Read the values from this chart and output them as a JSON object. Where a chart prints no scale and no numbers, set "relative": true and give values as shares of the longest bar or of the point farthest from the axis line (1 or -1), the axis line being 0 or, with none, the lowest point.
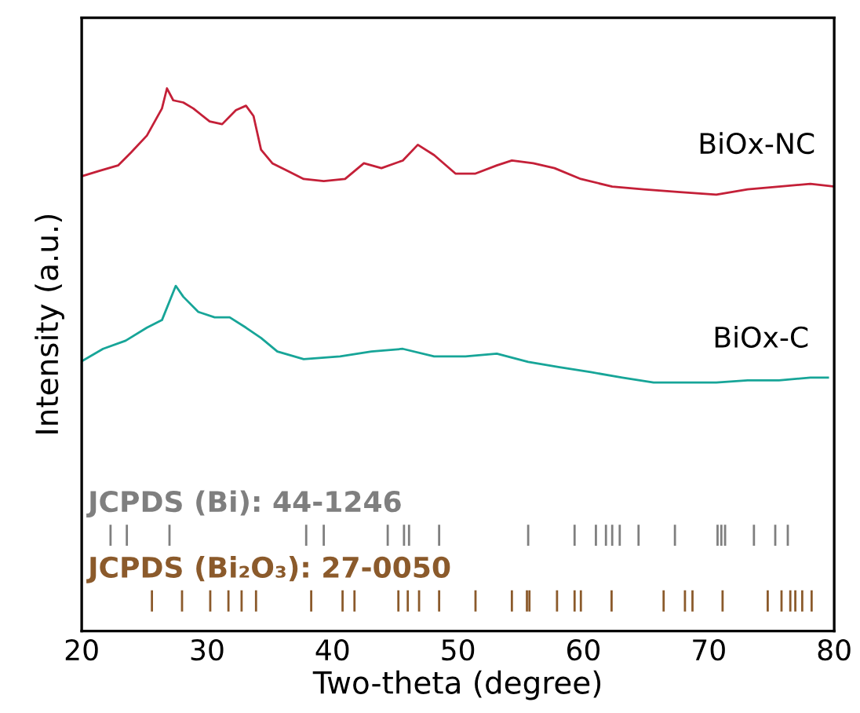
{
  "chart_data": {
    "type": "line",
    "relative": true,
    "xlabel": "Two-theta (degree)",
    "ylabel": "Intensity (a.u.)",
    "xlim": [
      20,
      80
    ],
    "xticks": [
      20,
      30,
      40,
      50,
      60,
      70,
      80
    ],
    "grid": false,
    "legend": false,
    "series": [
      {
        "name": "BiOx-NC",
        "color": "#c42038",
        "x": [
          20.0,
          21.4,
          22.9,
          23.9,
          25.2,
          26.4,
          26.8,
          27.3,
          28.1,
          28.9,
          30.2,
          31.2,
          32.3,
          33.1,
          33.7,
          34.3,
          35.2,
          36.4,
          37.7,
          39.3,
          41.0,
          42.5,
          43.9,
          45.6,
          46.8,
          48.1,
          49.8,
          51.4,
          53.1,
          54.3,
          56.0,
          57.7,
          59.8,
          62.3,
          64.8,
          67.7,
          70.6,
          73.1,
          75.6,
          78.1,
          80.0
        ],
        "values": [
          0.838,
          0.848,
          0.858,
          0.881,
          0.913,
          0.963,
          1.0,
          0.978,
          0.974,
          0.963,
          0.939,
          0.934,
          0.96,
          0.968,
          0.949,
          0.887,
          0.862,
          0.848,
          0.833,
          0.829,
          0.833,
          0.862,
          0.853,
          0.867,
          0.896,
          0.877,
          0.843,
          0.843,
          0.858,
          0.867,
          0.862,
          0.853,
          0.833,
          0.819,
          0.814,
          0.809,
          0.804,
          0.814,
          0.819,
          0.824,
          0.819
        ]
      },
      {
        "name": "BiOx-C",
        "color": "#17a598",
        "x": [
          20.0,
          21.7,
          23.5,
          25.2,
          26.4,
          27.5,
          28.1,
          29.3,
          30.6,
          31.8,
          33.1,
          34.3,
          35.6,
          37.7,
          40.6,
          43.1,
          45.6,
          48.1,
          50.6,
          53.1,
          55.6,
          58.1,
          60.6,
          63.1,
          65.6,
          68.1,
          70.6,
          73.1,
          75.6,
          78.1,
          79.5
        ],
        "values": [
          0.497,
          0.52,
          0.535,
          0.559,
          0.573,
          0.636,
          0.616,
          0.588,
          0.578,
          0.578,
          0.559,
          0.54,
          0.515,
          0.501,
          0.506,
          0.515,
          0.52,
          0.506,
          0.506,
          0.511,
          0.496,
          0.486,
          0.477,
          0.467,
          0.458,
          0.458,
          0.458,
          0.462,
          0.462,
          0.467,
          0.467
        ]
      },
      {
        "name": "JCPDS (Bi): 44-1246",
        "color": "#7f7f7f",
        "x": [
          22.3,
          22.3,
          null,
          23.6,
          23.6,
          null,
          27.0,
          27.0,
          null,
          37.9,
          37.9,
          null,
          39.3,
          39.3,
          null,
          44.4,
          44.4,
          null,
          45.7,
          45.7,
          null,
          46.1,
          46.1,
          null,
          48.5,
          48.5,
          null,
          55.6,
          55.6,
          null,
          59.3,
          59.3,
          null,
          61.0,
          61.0,
          null,
          61.8,
          61.8,
          null,
          62.3,
          62.3,
          null,
          62.9,
          62.9,
          null,
          64.4,
          64.4,
          null,
          67.3,
          67.3,
          null,
          70.7,
          70.7,
          null,
          71.0,
          71.0,
          null,
          71.3,
          71.3,
          null,
          73.6,
          73.6,
          null,
          75.3,
          75.3,
          null,
          76.3,
          76.3
        ],
        "values": [
          0.159,
          0.194,
          null,
          0.159,
          0.194,
          null,
          0.159,
          0.194,
          null,
          0.159,
          0.194,
          null,
          0.159,
          0.194,
          null,
          0.159,
          0.194,
          null,
          0.159,
          0.194,
          null,
          0.159,
          0.194,
          null,
          0.159,
          0.194,
          null,
          0.159,
          0.194,
          null,
          0.159,
          0.194,
          null,
          0.159,
          0.194,
          null,
          0.159,
          0.194,
          null,
          0.159,
          0.194,
          null,
          0.159,
          0.194,
          null,
          0.159,
          0.194,
          null,
          0.159,
          0.194,
          null,
          0.159,
          0.194,
          null,
          0.159,
          0.194,
          null,
          0.159,
          0.194,
          null,
          0.159,
          0.194,
          null,
          0.159,
          0.194,
          null,
          0.159,
          0.194
        ]
      },
      {
        "name": "JCPDS (Bi₂O₃): 27-0050",
        "color": "#8b5a2b",
        "x": [
          25.6,
          25.6,
          null,
          28.0,
          28.0,
          null,
          30.25,
          30.25,
          null,
          31.7,
          31.7,
          null,
          32.75,
          32.75,
          null,
          33.9,
          33.9,
          null,
          38.3,
          38.3,
          null,
          40.8,
          40.8,
          null,
          41.75,
          41.75,
          null,
          45.25,
          45.25,
          null,
          46.0,
          46.0,
          null,
          46.9,
          46.9,
          null,
          48.5,
          48.5,
          null,
          51.4,
          51.4,
          null,
          54.3,
          54.3,
          null,
          55.5,
          55.5,
          null,
          55.7,
          55.7,
          null,
          57.9,
          57.9,
          null,
          59.3,
          59.3,
          null,
          59.8,
          59.8,
          null,
          62.25,
          62.25,
          null,
          66.4,
          66.4,
          null,
          68.1,
          68.1,
          null,
          68.7,
          68.7,
          null,
          71.1,
          71.1,
          null,
          74.7,
          74.7,
          null,
          75.8,
          75.8,
          null,
          76.5,
          76.5,
          null,
          76.9,
          76.9,
          null,
          77.45,
          77.45,
          null,
          78.2,
          78.2
        ],
        "values": [
          0.038,
          0.073,
          null,
          0.038,
          0.073,
          null,
          0.038,
          0.073,
          null,
          0.038,
          0.073,
          null,
          0.038,
          0.073,
          null,
          0.038,
          0.073,
          null,
          0.038,
          0.073,
          null,
          0.038,
          0.073,
          null,
          0.038,
          0.073,
          null,
          0.038,
          0.073,
          null,
          0.038,
          0.073,
          null,
          0.038,
          0.073,
          null,
          0.038,
          0.073,
          null,
          0.038,
          0.073,
          null,
          0.038,
          0.073,
          null,
          0.038,
          0.073,
          null,
          0.038,
          0.073,
          null,
          0.038,
          0.073,
          null,
          0.038,
          0.073,
          null,
          0.038,
          0.073,
          null,
          0.038,
          0.073,
          null,
          0.038,
          0.073,
          null,
          0.038,
          0.073,
          null,
          0.038,
          0.073,
          null,
          0.038,
          0.073,
          null,
          0.038,
          0.073,
          null,
          0.038,
          0.073,
          null,
          0.038,
          0.073,
          null,
          0.038,
          0.073,
          null,
          0.038,
          0.073,
          null,
          0.038,
          0.073
        ]
      }
    ]
  }
}
